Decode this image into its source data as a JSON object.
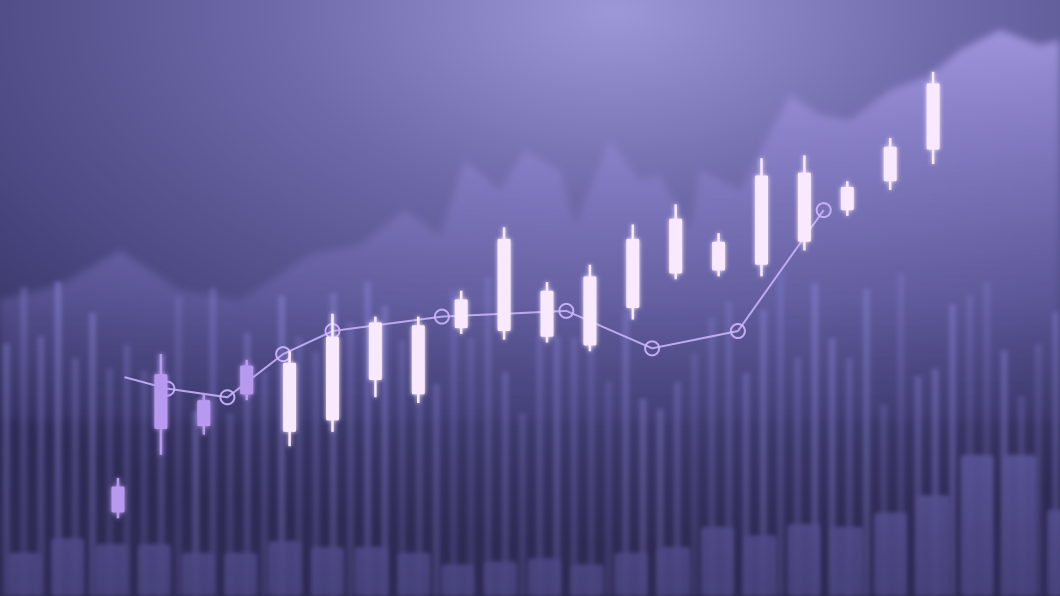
{
  "chart_data": {
    "type": "candlestick",
    "title": "",
    "xlabel": "",
    "ylabel": "",
    "axes_shown": false,
    "grid": false,
    "legend": "none",
    "ylim": [
      0,
      100
    ],
    "candles": [
      {
        "open": 14.5,
        "close": 19.0,
        "high": 20.5,
        "low": 13.5
      },
      {
        "open": 29.0,
        "close": 38.5,
        "high": 42.0,
        "low": 24.5
      },
      {
        "open": 29.5,
        "close": 34.0,
        "high": 35.0,
        "low": 28.0
      },
      {
        "open": 35.0,
        "close": 40.0,
        "high": 41.0,
        "low": 34.0
      },
      {
        "open": 28.5,
        "close": 40.5,
        "high": 42.5,
        "low": 26.0
      },
      {
        "open": 30.5,
        "close": 45.0,
        "high": 49.0,
        "low": 28.5
      },
      {
        "open": 37.5,
        "close": 47.5,
        "high": 48.5,
        "low": 34.5
      },
      {
        "open": 35.0,
        "close": 47.0,
        "high": 48.5,
        "low": 33.5
      },
      {
        "open": 46.5,
        "close": 51.5,
        "high": 53.0,
        "low": 45.5
      },
      {
        "open": 46.0,
        "close": 62.0,
        "high": 64.0,
        "low": 44.5
      },
      {
        "open": 45.0,
        "close": 53.0,
        "high": 54.5,
        "low": 44.0
      },
      {
        "open": 43.5,
        "close": 55.5,
        "high": 57.5,
        "low": 42.5
      },
      {
        "open": 50.0,
        "close": 62.0,
        "high": 64.5,
        "low": 48.0
      },
      {
        "open": 56.0,
        "close": 65.5,
        "high": 68.0,
        "low": 55.0
      },
      {
        "open": 56.5,
        "close": 61.5,
        "high": 63.0,
        "low": 55.5
      },
      {
        "open": 57.5,
        "close": 73.0,
        "high": 76.0,
        "low": 55.5
      },
      {
        "open": 61.5,
        "close": 73.5,
        "high": 76.5,
        "low": 60.0
      },
      {
        "open": 67.0,
        "close": 71.0,
        "high": 72.0,
        "low": 66.0
      },
      {
        "open": 72.0,
        "close": 78.0,
        "high": 79.5,
        "low": 70.5
      },
      {
        "open": 77.5,
        "close": 89.0,
        "high": 91.0,
        "low": 75.0
      }
    ],
    "trend_line": [
      {
        "x": 0.15,
        "y": 38.0
      },
      {
        "x": 1.15,
        "y": 36.0
      },
      {
        "x": 2.55,
        "y": 34.5
      },
      {
        "x": 3.85,
        "y": 42.0
      },
      {
        "x": 5.0,
        "y": 46.0
      },
      {
        "x": 7.55,
        "y": 48.5
      },
      {
        "x": 10.45,
        "y": 49.5
      },
      {
        "x": 12.45,
        "y": 43.0
      },
      {
        "x": 14.45,
        "y": 46.0
      },
      {
        "x": 16.45,
        "y": 67.0
      }
    ],
    "volume_bars": [
      7.5,
      10.0,
      9.0,
      9.0,
      7.5,
      7.5,
      9.5,
      8.5,
      8.5,
      7.5,
      5.5,
      6.0,
      6.5,
      5.5,
      7.5,
      8.5,
      12.0,
      10.5,
      12.5,
      12.0,
      14.5,
      17.5,
      24.5,
      24.5,
      15.0
    ],
    "colors": {
      "background_top": "#6f6aaa",
      "background_bottom": "#322f5c",
      "mountain": "#8d83cf",
      "candle_bright": "#f8e9ff",
      "candle_dim": "#b79af0",
      "trend_line": "#cdb7ff",
      "thin_bar": "#7c76c4",
      "volume_bar": "#6e67b8"
    }
  }
}
